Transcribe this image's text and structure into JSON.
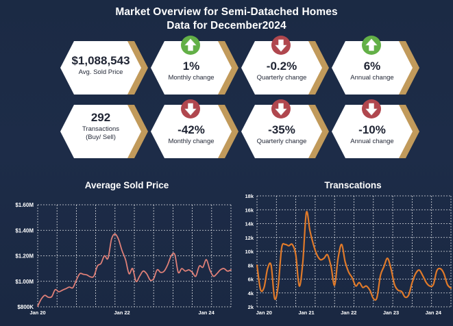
{
  "header": {
    "title_line1": "Market Overview for Semi-Datached Homes",
    "title_line2": "Data for December2024"
  },
  "colors": {
    "background": "#1b2a44",
    "gold": "#c19a5b",
    "up": "#63b047",
    "down": "#b0474e",
    "line_price": "#e08078",
    "line_trans": "#e07a2a"
  },
  "kpis_row1": [
    {
      "value": "$1,088,543",
      "label": "Avg. Sold Price",
      "icon": "none"
    },
    {
      "value": "1%",
      "label": "Monthly change",
      "icon": "arrow-up-icon"
    },
    {
      "value": "-0.2%",
      "label": "Quarterly change",
      "icon": "arrow-down-icon"
    },
    {
      "value": "6%",
      "label": "Annual change",
      "icon": "arrow-up-icon"
    }
  ],
  "kpis_row2": [
    {
      "value": "292",
      "label": "Transactions",
      "label2": "(Buy/ Sell)",
      "icon": "none"
    },
    {
      "value": "-42%",
      "label": "Monthly change",
      "icon": "arrow-down-icon"
    },
    {
      "value": "-35%",
      "label": "Quarterly change",
      "icon": "arrow-down-icon"
    },
    {
      "value": "-10%",
      "label": "Annual change",
      "icon": "arrow-down-icon"
    }
  ],
  "chart_data": [
    {
      "type": "line",
      "title": "Average Sold Price",
      "ylim": [
        800000,
        1600000
      ],
      "yticks": [
        800000,
        1000000,
        1200000,
        1400000,
        1600000
      ],
      "ytick_labels": [
        "$800K",
        "$1.00M",
        "$1.20M",
        "$1.40M",
        "$1.60M"
      ],
      "xtick_labels": [
        "Jan 20",
        "Jan 22",
        "Jan 24"
      ],
      "xtick_positions": [
        0,
        24,
        48
      ],
      "grid": true,
      "series": [
        {
          "values": [
            805000,
            860000,
            890000,
            875000,
            880000,
            935000,
            918000,
            930000,
            942000,
            955000,
            950000,
            1010000,
            1060000,
            1055000,
            1050000,
            1035000,
            1040000,
            1120000,
            1140000,
            1200000,
            1180000,
            1330000,
            1370000,
            1330000,
            1240000,
            1170000,
            1060000,
            1100000,
            1000000,
            1040000,
            1080000,
            1060000,
            1010000,
            1020000,
            1090000,
            1070000,
            1080000,
            1130000,
            1200000,
            1210000,
            1070000,
            1100000,
            1080000,
            1090000,
            1070000,
            1040000,
            1120000,
            1110000,
            1170000,
            1090000,
            1040000,
            1060000,
            1090000,
            1100000,
            1080000,
            1090000
          ]
        }
      ]
    },
    {
      "type": "line",
      "title": "Transcations",
      "ylim": [
        2000,
        18000
      ],
      "yticks": [
        2000,
        4000,
        6000,
        8000,
        10000,
        12000,
        14000,
        16000,
        18000
      ],
      "ytick_labels": [
        "2k",
        "4k",
        "6k",
        "8k",
        "10k",
        "12k",
        "14k",
        "16k",
        "18k"
      ],
      "xtick_labels": [
        "Jan 20",
        "Jan 21",
        "Jan 22",
        "Jan 23",
        "Jan 24"
      ],
      "xtick_positions": [
        2,
        14,
        26,
        38,
        50
      ],
      "grid": true,
      "series": [
        {
          "values": [
            8000,
            4500,
            4800,
            7500,
            8000,
            3200,
            5000,
            10500,
            11000,
            10800,
            11000,
            9500,
            5000,
            8500,
            15600,
            13000,
            11000,
            9500,
            8800,
            9000,
            9500,
            7800,
            5100,
            9000,
            11000,
            8500,
            7000,
            6200,
            5000,
            5500,
            4800,
            5000,
            4400,
            3200,
            3300,
            6500,
            7800,
            9000,
            7500,
            5200,
            4400,
            4200,
            3400,
            3700,
            5500,
            6800,
            7300,
            6500,
            5500,
            5000,
            5200,
            7200,
            7500,
            6800,
            5200,
            4700
          ]
        }
      ]
    }
  ]
}
